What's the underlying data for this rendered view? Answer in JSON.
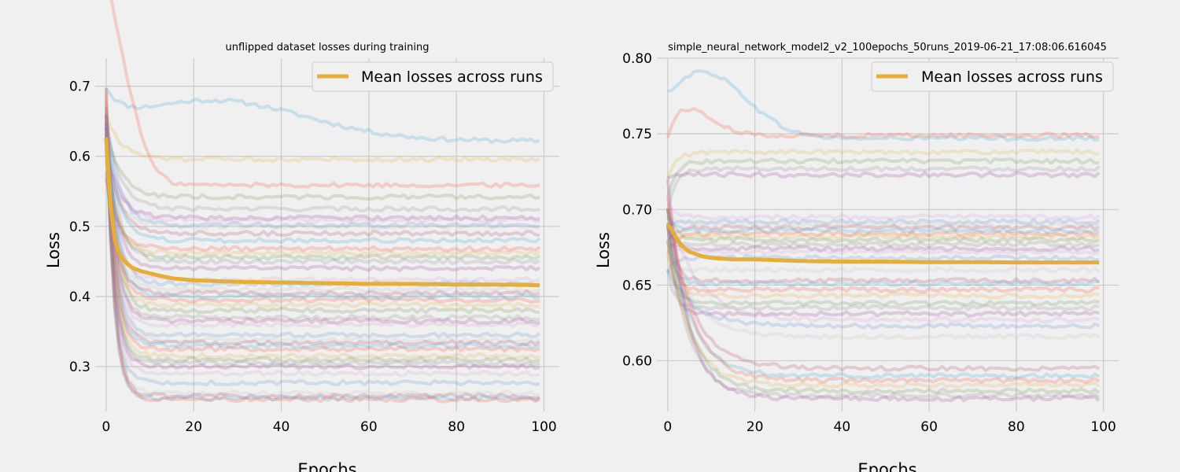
{
  "chart_data": [
    {
      "type": "line",
      "title": "unflipped dataset losses during training",
      "xlabel": "Epochs",
      "ylabel": "Loss",
      "xlim": [
        -2.5,
        103.5
      ],
      "ylim": [
        0.236,
        0.74
      ],
      "xticks": [
        0,
        20,
        40,
        60,
        80,
        100
      ],
      "yticks": [
        0.3,
        0.4,
        0.5,
        0.6,
        0.7
      ],
      "tick_labels_x": [
        "0",
        "20",
        "40",
        "60",
        "80",
        "100"
      ],
      "tick_labels_y": [
        "0.3",
        "0.4",
        "0.5",
        "0.6",
        "0.7"
      ],
      "grid": true,
      "legend": {
        "position": "top-right",
        "entries": [
          "Mean losses across runs"
        ]
      },
      "mean_color": "#e5ae38",
      "runs_count": 50,
      "run_colors": [
        "#30a2da",
        "#fc4f30",
        "#e5ae38",
        "#6d904f",
        "#8b8b8b",
        "#9e3aa0",
        "#d0a0d0",
        "#5a8bd8",
        "#c5c5c5",
        "#b04a60"
      ],
      "mean": {
        "name": "Mean losses across runs",
        "x": [
          0,
          1,
          2,
          3,
          4,
          5,
          6,
          8,
          10,
          12,
          15,
          20,
          25,
          30,
          40,
          50,
          60,
          70,
          80,
          90,
          99
        ],
        "y": [
          0.627,
          0.53,
          0.48,
          0.462,
          0.452,
          0.446,
          0.441,
          0.436,
          0.433,
          0.43,
          0.426,
          0.423,
          0.422,
          0.421,
          0.42,
          0.419,
          0.418,
          0.418,
          0.417,
          0.417,
          0.416
        ]
      },
      "runs": [
        {
          "start": 0.668,
          "end": 0.622,
          "hump": [
            24,
            0.68
          ],
          "min": 0.62
        },
        {
          "start": 0.709,
          "end": 0.559,
          "hump": [
            1,
            0.717
          ]
        },
        {
          "start": 0.66,
          "end": 0.596
        },
        {
          "start": 0.64,
          "end": 0.542
        },
        {
          "start": 0.65,
          "end": 0.525
        },
        {
          "start": 0.61,
          "end": 0.512
        },
        {
          "start": 0.63,
          "end": 0.509
        },
        {
          "start": 0.655,
          "end": 0.502
        },
        {
          "start": 0.6,
          "end": 0.5
        },
        {
          "start": 0.62,
          "end": 0.49
        },
        {
          "start": 0.64,
          "end": 0.48
        },
        {
          "start": 0.57,
          "end": 0.468
        },
        {
          "start": 0.59,
          "end": 0.462
        },
        {
          "start": 0.61,
          "end": 0.456
        },
        {
          "start": 0.66,
          "end": 0.45
        },
        {
          "start": 0.63,
          "end": 0.44
        },
        {
          "start": 0.6,
          "end": 0.424
        },
        {
          "start": 0.65,
          "end": 0.418
        },
        {
          "start": 0.62,
          "end": 0.41
        },
        {
          "start": 0.58,
          "end": 0.405
        },
        {
          "start": 0.67,
          "end": 0.4
        },
        {
          "start": 0.64,
          "end": 0.395
        },
        {
          "start": 0.6,
          "end": 0.388
        },
        {
          "start": 0.66,
          "end": 0.38
        },
        {
          "start": 0.63,
          "end": 0.37
        },
        {
          "start": 0.65,
          "end": 0.365
        },
        {
          "start": 0.61,
          "end": 0.36
        },
        {
          "start": 0.64,
          "end": 0.345
        },
        {
          "start": 0.68,
          "end": 0.338
        },
        {
          "start": 0.66,
          "end": 0.334
        },
        {
          "start": 0.63,
          "end": 0.33
        },
        {
          "start": 0.65,
          "end": 0.325
        },
        {
          "start": 0.67,
          "end": 0.315
        },
        {
          "start": 0.62,
          "end": 0.31
        },
        {
          "start": 0.66,
          "end": 0.305
        },
        {
          "start": 0.64,
          "end": 0.3
        },
        {
          "start": 0.68,
          "end": 0.29
        },
        {
          "start": 0.65,
          "end": 0.277
        },
        {
          "start": 0.67,
          "end": 0.262
        },
        {
          "start": 0.7,
          "end": 0.258
        },
        {
          "start": 0.66,
          "end": 0.255
        },
        {
          "start": 0.69,
          "end": 0.253
        }
      ]
    },
    {
      "type": "line",
      "title": "simple_neural_network_model2_v2_100epochs_50runs_2019-06-21_17:08:06.616045",
      "xlabel": "Epochs",
      "ylabel": "Loss",
      "xlim": [
        -2.5,
        103.5
      ],
      "ylim": [
        0.5665,
        0.8
      ],
      "xticks": [
        0,
        20,
        40,
        60,
        80,
        100
      ],
      "yticks": [
        0.6,
        0.65,
        0.7,
        0.75,
        0.8
      ],
      "tick_labels_x": [
        "0",
        "20",
        "40",
        "60",
        "80",
        "100"
      ],
      "tick_labels_y": [
        "0.60",
        "0.65",
        "0.70",
        "0.75",
        "0.80"
      ],
      "grid": true,
      "legend": {
        "position": "top-right",
        "entries": [
          "Mean losses across runs"
        ]
      },
      "mean_color": "#e5ae38",
      "runs_count": 50,
      "run_colors": [
        "#30a2da",
        "#fc4f30",
        "#e5ae38",
        "#6d904f",
        "#8b8b8b",
        "#9e3aa0",
        "#d0a0d0",
        "#5a8bd8",
        "#c5c5c5",
        "#b04a60"
      ],
      "mean": {
        "name": "Mean losses across runs",
        "x": [
          0,
          1,
          2,
          3,
          4,
          5,
          6,
          8,
          10,
          15,
          20,
          30,
          40,
          50,
          60,
          70,
          80,
          90,
          99
        ],
        "y": [
          0.69,
          0.686,
          0.681,
          0.677,
          0.674,
          0.672,
          0.671,
          0.669,
          0.668,
          0.667,
          0.667,
          0.666,
          0.6655,
          0.6655,
          0.6652,
          0.6652,
          0.665,
          0.665,
          0.665
        ]
      },
      "runs": [
        {
          "start": 0.745,
          "end": 0.747,
          "hump": [
            8,
            0.791
          ]
        },
        {
          "start": 0.73,
          "end": 0.749,
          "hump": [
            3,
            0.769
          ]
        },
        {
          "start": 0.72,
          "end": 0.738
        },
        {
          "start": 0.71,
          "end": 0.732
        },
        {
          "start": 0.7,
          "end": 0.727
        },
        {
          "start": 0.72,
          "end": 0.723
        },
        {
          "start": 0.705,
          "end": 0.695
        },
        {
          "start": 0.69,
          "end": 0.692
        },
        {
          "start": 0.7,
          "end": 0.69
        },
        {
          "start": 0.68,
          "end": 0.688
        },
        {
          "start": 0.695,
          "end": 0.686
        },
        {
          "start": 0.67,
          "end": 0.684
        },
        {
          "start": 0.685,
          "end": 0.682
        },
        {
          "start": 0.7,
          "end": 0.68
        },
        {
          "start": 0.675,
          "end": 0.677
        },
        {
          "start": 0.69,
          "end": 0.674
        },
        {
          "start": 0.68,
          "end": 0.672
        },
        {
          "start": 0.66,
          "end": 0.668
        },
        {
          "start": 0.67,
          "end": 0.66
        },
        {
          "start": 0.7,
          "end": 0.653
        },
        {
          "start": 0.68,
          "end": 0.651
        },
        {
          "start": 0.69,
          "end": 0.647
        },
        {
          "start": 0.67,
          "end": 0.643
        },
        {
          "start": 0.68,
          "end": 0.638
        },
        {
          "start": 0.66,
          "end": 0.635
        },
        {
          "start": 0.69,
          "end": 0.631
        },
        {
          "start": 0.7,
          "end": 0.627
        },
        {
          "start": 0.66,
          "end": 0.623
        },
        {
          "start": 0.68,
          "end": 0.616
        },
        {
          "start": 0.7,
          "end": 0.595
        },
        {
          "start": 0.69,
          "end": 0.59
        },
        {
          "start": 0.71,
          "end": 0.587
        },
        {
          "start": 0.68,
          "end": 0.584
        },
        {
          "start": 0.7,
          "end": 0.58
        },
        {
          "start": 0.69,
          "end": 0.577
        },
        {
          "start": 0.72,
          "end": 0.575
        }
      ]
    }
  ]
}
